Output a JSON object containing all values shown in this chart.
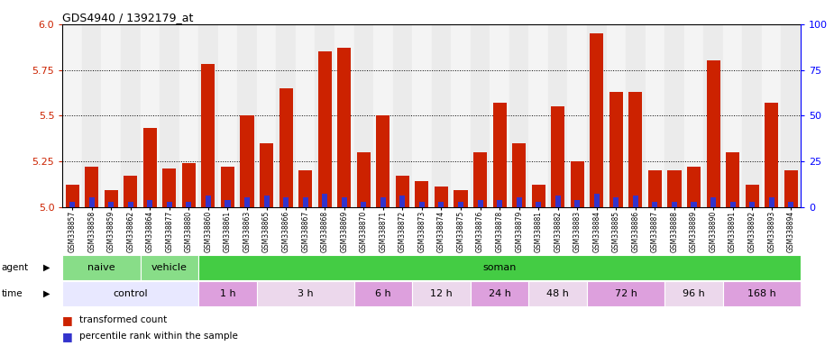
{
  "title": "GDS4940 / 1392179_at",
  "sample_labels": [
    "GSM338857",
    "GSM338858",
    "GSM338859",
    "GSM338862",
    "GSM338864",
    "GSM338877",
    "GSM338880",
    "GSM338860",
    "GSM338861",
    "GSM338863",
    "GSM338865",
    "GSM338866",
    "GSM338867",
    "GSM338868",
    "GSM338869",
    "GSM338870",
    "GSM338871",
    "GSM338872",
    "GSM338873",
    "GSM338874",
    "GSM338875",
    "GSM338876",
    "GSM338878",
    "GSM338879",
    "GSM338881",
    "GSM338882",
    "GSM338883",
    "GSM338884",
    "GSM338885",
    "GSM338886",
    "GSM338887",
    "GSM338888",
    "GSM338889",
    "GSM338890",
    "GSM338891",
    "GSM338892",
    "GSM338893",
    "GSM338894"
  ],
  "red_values": [
    5.12,
    5.22,
    5.09,
    5.17,
    5.43,
    5.21,
    5.24,
    5.78,
    5.22,
    5.5,
    5.35,
    5.65,
    5.2,
    5.85,
    5.87,
    5.3,
    5.5,
    5.17,
    5.14,
    5.11,
    5.09,
    5.3,
    5.57,
    5.35,
    5.12,
    5.55,
    5.25,
    5.95,
    5.63,
    5.63,
    5.2,
    5.2,
    5.22,
    5.8,
    5.3,
    5.12,
    5.57,
    5.2
  ],
  "blue_values": [
    3,
    5,
    3,
    3,
    4,
    3,
    3,
    6,
    4,
    5,
    6,
    5,
    5,
    7,
    5,
    3,
    5,
    6,
    3,
    3,
    3,
    4,
    4,
    5,
    3,
    6,
    4,
    7,
    5,
    6,
    3,
    3,
    3,
    5,
    3,
    3,
    5,
    3
  ],
  "y_min": 5.0,
  "y_max": 6.0,
  "y_ticks_red": [
    5.0,
    5.25,
    5.5,
    5.75,
    6.0
  ],
  "y_ticks_blue": [
    0,
    25,
    50,
    75,
    100
  ],
  "bar_color_red": "#CC2200",
  "bar_color_blue": "#3333CC",
  "bar_width": 0.7,
  "agent_boxes": [
    {
      "label": "naive",
      "start": 0,
      "end": 4,
      "color": "#88DD88"
    },
    {
      "label": "vehicle",
      "start": 4,
      "end": 7,
      "color": "#88DD88"
    },
    {
      "label": "soman",
      "start": 7,
      "end": 38,
      "color": "#44CC44"
    }
  ],
  "time_boxes": [
    {
      "label": "control",
      "start": 0,
      "end": 7,
      "color": "#E8E8FF"
    },
    {
      "label": "1 h",
      "start": 7,
      "end": 10,
      "color": "#DDA0DD"
    },
    {
      "label": "3 h",
      "start": 10,
      "end": 15,
      "color": "#ECD8EC"
    },
    {
      "label": "6 h",
      "start": 15,
      "end": 18,
      "color": "#DDA0DD"
    },
    {
      "label": "12 h",
      "start": 18,
      "end": 21,
      "color": "#ECD8EC"
    },
    {
      "label": "24 h",
      "start": 21,
      "end": 24,
      "color": "#DDA0DD"
    },
    {
      "label": "48 h",
      "start": 24,
      "end": 27,
      "color": "#ECD8EC"
    },
    {
      "label": "72 h",
      "start": 27,
      "end": 31,
      "color": "#DDA0DD"
    },
    {
      "label": "96 h",
      "start": 31,
      "end": 34,
      "color": "#ECD8EC"
    },
    {
      "label": "168 h",
      "start": 34,
      "end": 38,
      "color": "#DDA0DD"
    }
  ]
}
